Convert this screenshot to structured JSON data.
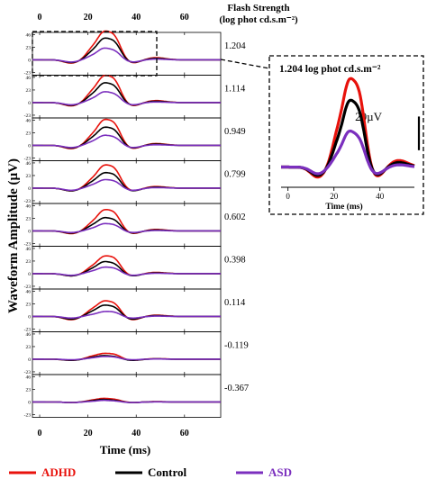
{
  "chart_data": {
    "type": "line",
    "ylabel": "Waveform Amplitude (µV)",
    "xlabel": "Time (ms)",
    "x_ticks": [
      0,
      20,
      40,
      60
    ],
    "xlim": [
      -3,
      75
    ],
    "y_ticks_text": [
      "46",
      "23",
      "0",
      "-23"
    ],
    "ylim": [
      -28,
      50
    ],
    "flash_header": [
      "Flash Strength",
      "(log phot cd.s.m⁻²)"
    ],
    "flash_strengths": [
      "1.204",
      "1.114",
      "0.949",
      "0.799",
      "0.602",
      "0.398",
      "0.114",
      "-0.119",
      "-0.367"
    ],
    "series_colors": {
      "ADHD": "#e8120c",
      "Control": "#000000",
      "ASD": "#7b2fbe"
    },
    "legend": [
      {
        "name": "ADHD",
        "color": "#e8120c"
      },
      {
        "name": "Control",
        "color": "#000000"
      },
      {
        "name": "ASD",
        "color": "#7b2fbe"
      }
    ],
    "panels": [
      {
        "flash": "1.204",
        "ADHD": {
          "dip": -6,
          "p1": 20,
          "b": 30,
          "p2": 44
        },
        "Control": {
          "dip": -5,
          "p1": 14,
          "b": 23,
          "p2": 33
        },
        "ASD": {
          "dip": -4,
          "p1": 7,
          "b": 13,
          "p2": 17
        }
      },
      {
        "flash": "1.114",
        "ADHD": {
          "dip": -6,
          "p1": 19,
          "b": 28,
          "p2": 42
        },
        "Control": {
          "dip": -5,
          "p1": 13,
          "b": 21,
          "p2": 30
        },
        "ASD": {
          "dip": -4,
          "p1": 6,
          "b": 12,
          "p2": 16
        }
      },
      {
        "flash": "0.949",
        "ADHD": {
          "dip": -6,
          "p1": 17,
          "b": 27,
          "p2": 40
        },
        "Control": {
          "dip": -5,
          "p1": 12,
          "b": 19,
          "p2": 28
        },
        "ASD": {
          "dip": -4,
          "p1": 6,
          "b": 11,
          "p2": 15
        }
      },
      {
        "flash": "0.799",
        "ADHD": {
          "dip": -5,
          "p1": 15,
          "b": 24,
          "p2": 36
        },
        "Control": {
          "dip": -5,
          "p1": 10,
          "b": 16,
          "p2": 24
        },
        "ASD": {
          "dip": -4,
          "p1": 5,
          "b": 9,
          "p2": 13
        }
      },
      {
        "flash": "0.602",
        "ADHD": {
          "dip": -5,
          "p1": 14,
          "b": 22,
          "p2": 33
        },
        "Control": {
          "dip": -4,
          "p1": 9,
          "b": 14,
          "p2": 20
        },
        "ASD": {
          "dip": -3,
          "p1": 4,
          "b": 8,
          "p2": 11
        }
      },
      {
        "flash": "0.398",
        "ADHD": {
          "dip": -4,
          "p1": 12,
          "b": 18,
          "p2": 28
        },
        "Control": {
          "dip": -4,
          "p1": 8,
          "b": 13,
          "p2": 18
        },
        "ASD": {
          "dip": -3,
          "p1": 4,
          "b": 7,
          "p2": 10
        }
      },
      {
        "flash": "0.114",
        "ADHD": {
          "dip": -6,
          "p1": 12,
          "b": 16,
          "p2": 24
        },
        "Control": {
          "dip": -5,
          "p1": 8,
          "b": 12,
          "p2": 17
        },
        "ASD": {
          "dip": -3,
          "p1": 3,
          "b": 5,
          "p2": 8
        }
      },
      {
        "flash": "-0.119",
        "ADHD": {
          "dip": -2,
          "p1": 5,
          "b": 6,
          "p2": 9
        },
        "Control": {
          "dip": -2,
          "p1": 3,
          "b": 4,
          "p2": 5
        },
        "ASD": {
          "dip": -1,
          "p1": 2,
          "b": 3,
          "p2": 4
        }
      },
      {
        "flash": "-0.367",
        "ADHD": {
          "dip": -1,
          "p1": 3,
          "b": 4,
          "p2": 5
        },
        "Control": {
          "dip": -1,
          "p1": 2,
          "b": 3,
          "p2": 3
        },
        "ASD": {
          "dip": -1,
          "p1": 1,
          "b": 2,
          "p2": 2
        }
      }
    ],
    "inset": {
      "title": "1.204 log phot cd.s.m⁻²",
      "scale_label": "20µV",
      "scale_value": 20,
      "x_ticks": [
        0,
        20,
        40
      ],
      "xlabel": "Time (ms)",
      "xlim": [
        -3,
        55
      ],
      "ylim": [
        -12,
        50
      ]
    }
  }
}
